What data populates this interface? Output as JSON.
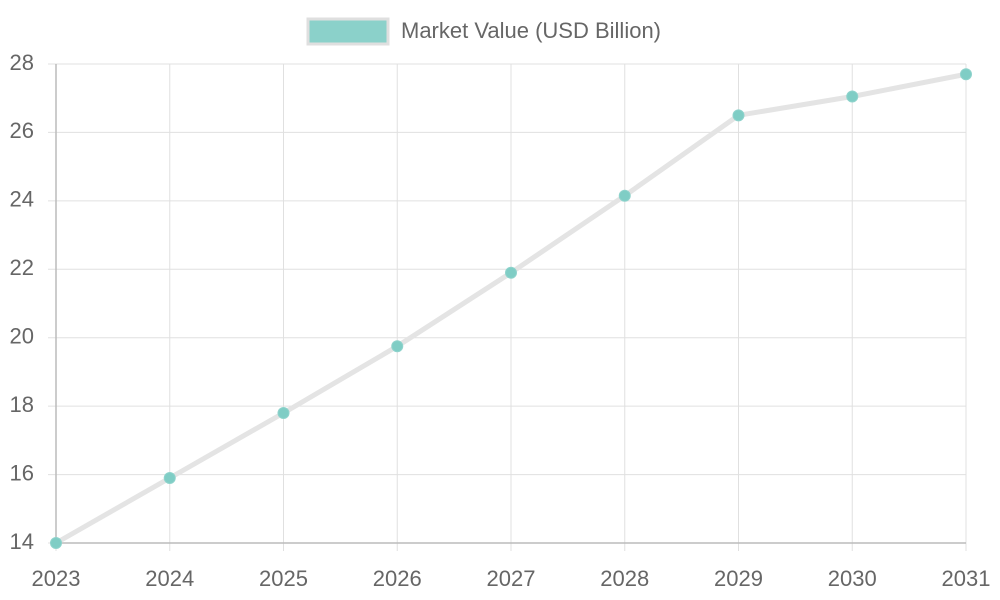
{
  "chart_data": {
    "type": "line",
    "categories": [
      "2023",
      "2024",
      "2025",
      "2026",
      "2027",
      "2028",
      "2029",
      "2030",
      "2031"
    ],
    "series": [
      {
        "name": "Market Value (USD Billion)",
        "color": "#7fcdc5",
        "line_color": "#e4e4e4",
        "values": [
          14.0,
          15.9,
          17.8,
          19.75,
          21.9,
          24.15,
          26.5,
          27.05,
          27.7
        ]
      }
    ],
    "ylim": [
      14,
      28
    ],
    "yticks": [
      14,
      16,
      18,
      20,
      22,
      24,
      26,
      28
    ],
    "grid": true,
    "legend": "top"
  }
}
